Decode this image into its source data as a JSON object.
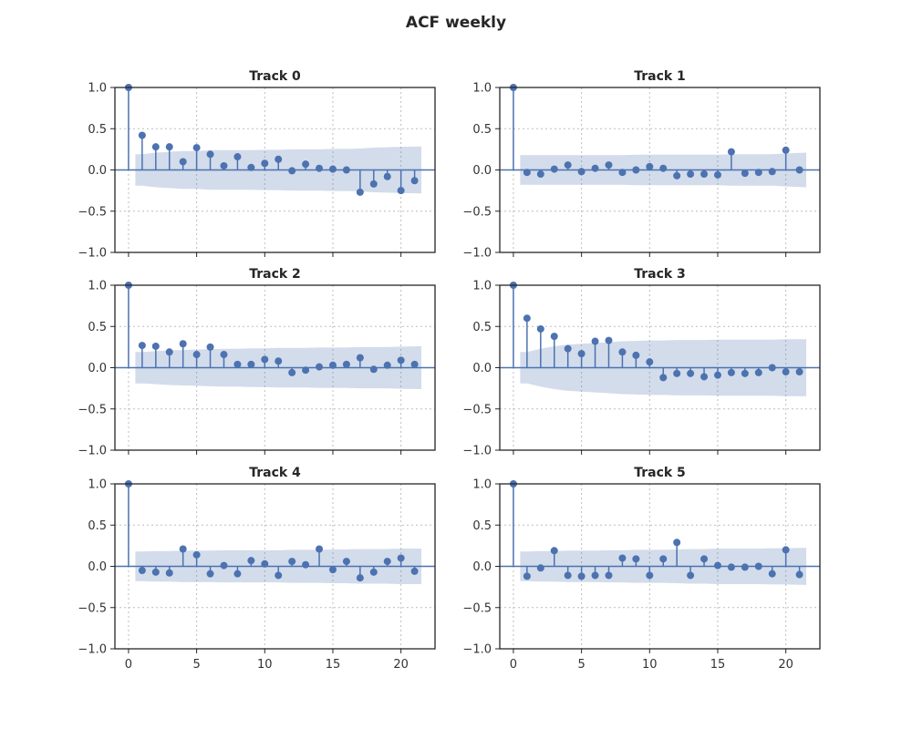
{
  "chart_data": {
    "type": "stem",
    "title": "ACF weekly",
    "lags": [
      0,
      1,
      2,
      3,
      4,
      5,
      6,
      7,
      8,
      9,
      10,
      11,
      12,
      13,
      14,
      15,
      16,
      17,
      18,
      19,
      20,
      21
    ],
    "xlim": [
      -1,
      22.5
    ],
    "ylim": [
      -1.0,
      1.0
    ],
    "xticks": [
      0,
      5,
      10,
      15,
      20
    ],
    "xtick_labels": [
      "0",
      "5",
      "10",
      "15",
      "20"
    ],
    "yticks": [
      1.0,
      0.5,
      0.0,
      -0.5,
      -1.0
    ],
    "ytick_labels": [
      "1.0",
      "0.5",
      "0.0",
      "−0.5",
      "−1.0"
    ],
    "grid": true,
    "panels": [
      {
        "title": "Track 0",
        "acf": [
          1.0,
          0.42,
          0.28,
          0.28,
          0.1,
          0.27,
          0.19,
          0.05,
          0.16,
          0.03,
          0.08,
          0.13,
          -0.01,
          0.07,
          0.02,
          0.01,
          0.0,
          -0.27,
          -0.17,
          -0.08,
          -0.25,
          -0.13
        ],
        "conf_band": [
          0.0,
          0.19,
          0.21,
          0.22,
          0.23,
          0.23,
          0.24,
          0.24,
          0.24,
          0.24,
          0.245,
          0.245,
          0.25,
          0.25,
          0.25,
          0.255,
          0.255,
          0.26,
          0.27,
          0.275,
          0.28,
          0.285
        ]
      },
      {
        "title": "Track 1",
        "acf": [
          1.0,
          -0.03,
          -0.05,
          0.01,
          0.06,
          -0.02,
          0.02,
          0.06,
          -0.03,
          0.0,
          0.04,
          0.02,
          -0.07,
          -0.05,
          -0.05,
          -0.06,
          0.22,
          -0.04,
          -0.03,
          -0.02,
          0.24,
          0.0
        ],
        "conf_band": [
          0.0,
          0.18,
          0.18,
          0.18,
          0.18,
          0.18,
          0.18,
          0.18,
          0.18,
          0.185,
          0.185,
          0.185,
          0.185,
          0.185,
          0.185,
          0.185,
          0.19,
          0.19,
          0.19,
          0.19,
          0.2,
          0.21
        ]
      },
      {
        "title": "Track 2",
        "acf": [
          1.0,
          0.27,
          0.26,
          0.19,
          0.29,
          0.16,
          0.25,
          0.16,
          0.04,
          0.04,
          0.1,
          0.08,
          -0.06,
          -0.03,
          0.01,
          0.03,
          0.04,
          0.12,
          -0.02,
          0.03,
          0.09,
          0.04
        ],
        "conf_band": [
          0.0,
          0.19,
          0.2,
          0.21,
          0.215,
          0.22,
          0.225,
          0.23,
          0.23,
          0.235,
          0.235,
          0.24,
          0.24,
          0.24,
          0.245,
          0.245,
          0.245,
          0.25,
          0.25,
          0.25,
          0.255,
          0.26
        ]
      },
      {
        "title": "Track 3",
        "acf": [
          1.0,
          0.6,
          0.47,
          0.38,
          0.23,
          0.17,
          0.32,
          0.33,
          0.19,
          0.15,
          0.07,
          -0.12,
          -0.07,
          -0.07,
          -0.11,
          -0.09,
          -0.06,
          -0.07,
          -0.06,
          0.0,
          -0.05,
          -0.05
        ],
        "conf_band": [
          0.0,
          0.19,
          0.23,
          0.26,
          0.28,
          0.29,
          0.3,
          0.31,
          0.32,
          0.325,
          0.33,
          0.33,
          0.335,
          0.335,
          0.335,
          0.34,
          0.34,
          0.34,
          0.34,
          0.34,
          0.345,
          0.345
        ]
      },
      {
        "title": "Track 4",
        "acf": [
          1.0,
          -0.05,
          -0.07,
          -0.08,
          0.21,
          0.14,
          -0.09,
          0.01,
          -0.09,
          0.07,
          0.03,
          -0.11,
          0.06,
          0.02,
          0.21,
          -0.04,
          0.06,
          -0.14,
          -0.07,
          0.06,
          0.1,
          -0.06
        ],
        "conf_band": [
          0.0,
          0.18,
          0.185,
          0.185,
          0.19,
          0.19,
          0.19,
          0.195,
          0.195,
          0.195,
          0.195,
          0.195,
          0.2,
          0.2,
          0.2,
          0.205,
          0.205,
          0.21,
          0.21,
          0.21,
          0.215,
          0.215
        ]
      },
      {
        "title": "Track 5",
        "acf": [
          1.0,
          -0.12,
          -0.02,
          0.19,
          -0.11,
          -0.12,
          -0.11,
          -0.11,
          0.1,
          0.09,
          -0.11,
          0.09,
          0.29,
          -0.11,
          0.09,
          0.01,
          -0.01,
          -0.01,
          0.0,
          -0.09,
          0.2,
          -0.1
        ],
        "conf_band": [
          0.0,
          0.18,
          0.185,
          0.185,
          0.19,
          0.19,
          0.19,
          0.195,
          0.195,
          0.2,
          0.2,
          0.2,
          0.205,
          0.21,
          0.21,
          0.215,
          0.215,
          0.215,
          0.215,
          0.22,
          0.22,
          0.225
        ]
      }
    ]
  },
  "colors": {
    "series": "#4c72b0",
    "band": "#4c72b0",
    "frame": "#262626",
    "grid": "#bdbdbd",
    "background": "#ffffff"
  }
}
